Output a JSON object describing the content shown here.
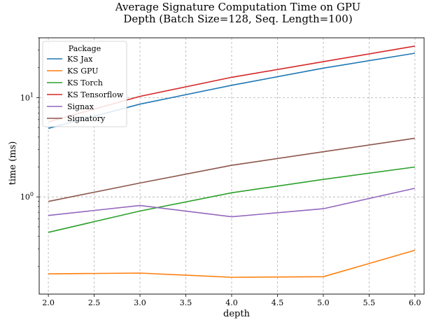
{
  "chart_data": {
    "type": "line",
    "title_line1": "Average Signature Computation Time on GPU",
    "title_line2": "Depth (Batch Size=128, Seq. Length=100)",
    "xlabel": "depth",
    "ylabel": "time (ms)",
    "yscale": "log",
    "xlim": [
      1.9,
      6.1
    ],
    "ylim": [
      0.105,
      40
    ],
    "grid": true,
    "legend_placement": "top-left",
    "legend_title": "Package",
    "x": [
      2.0,
      3.0,
      4.0,
      5.0,
      6.0
    ],
    "x_ticks": [
      {
        "value": 2.0,
        "label": "2.0"
      },
      {
        "value": 2.5,
        "label": "2.5"
      },
      {
        "value": 3.0,
        "label": "3.0"
      },
      {
        "value": 3.5,
        "label": "3.5"
      },
      {
        "value": 4.0,
        "label": "4.0"
      },
      {
        "value": 4.5,
        "label": "4.5"
      },
      {
        "value": 5.0,
        "label": "5.0"
      },
      {
        "value": 5.5,
        "label": "5.5"
      },
      {
        "value": 6.0,
        "label": "6.0"
      }
    ],
    "y_ticks": [
      {
        "value": 1,
        "label": "10",
        "sup": "0"
      },
      {
        "value": 10,
        "label": "10",
        "sup": "1"
      }
    ],
    "series": [
      {
        "name": "KS Jax",
        "color": "#1f77b4",
        "values": [
          4.9,
          8.6,
          13.3,
          19.8,
          28.0
        ]
      },
      {
        "name": "KS GPU",
        "color": "#ff7f0e",
        "values": [
          0.168,
          0.171,
          0.155,
          0.157,
          0.29
        ]
      },
      {
        "name": "KS Torch",
        "color": "#2ca02c",
        "values": [
          0.44,
          0.72,
          1.1,
          1.5,
          2.0
        ]
      },
      {
        "name": "KS Tensorflow",
        "color": "#d62728",
        "values": [
          5.7,
          10.3,
          16.0,
          23.0,
          33.0
        ]
      },
      {
        "name": "Signax",
        "color": "#9467bd",
        "values": [
          0.65,
          0.82,
          0.63,
          0.76,
          1.22
        ]
      },
      {
        "name": "Signatory",
        "color": "#8c564b",
        "values": [
          0.9,
          1.38,
          2.08,
          2.85,
          3.9
        ]
      }
    ]
  }
}
